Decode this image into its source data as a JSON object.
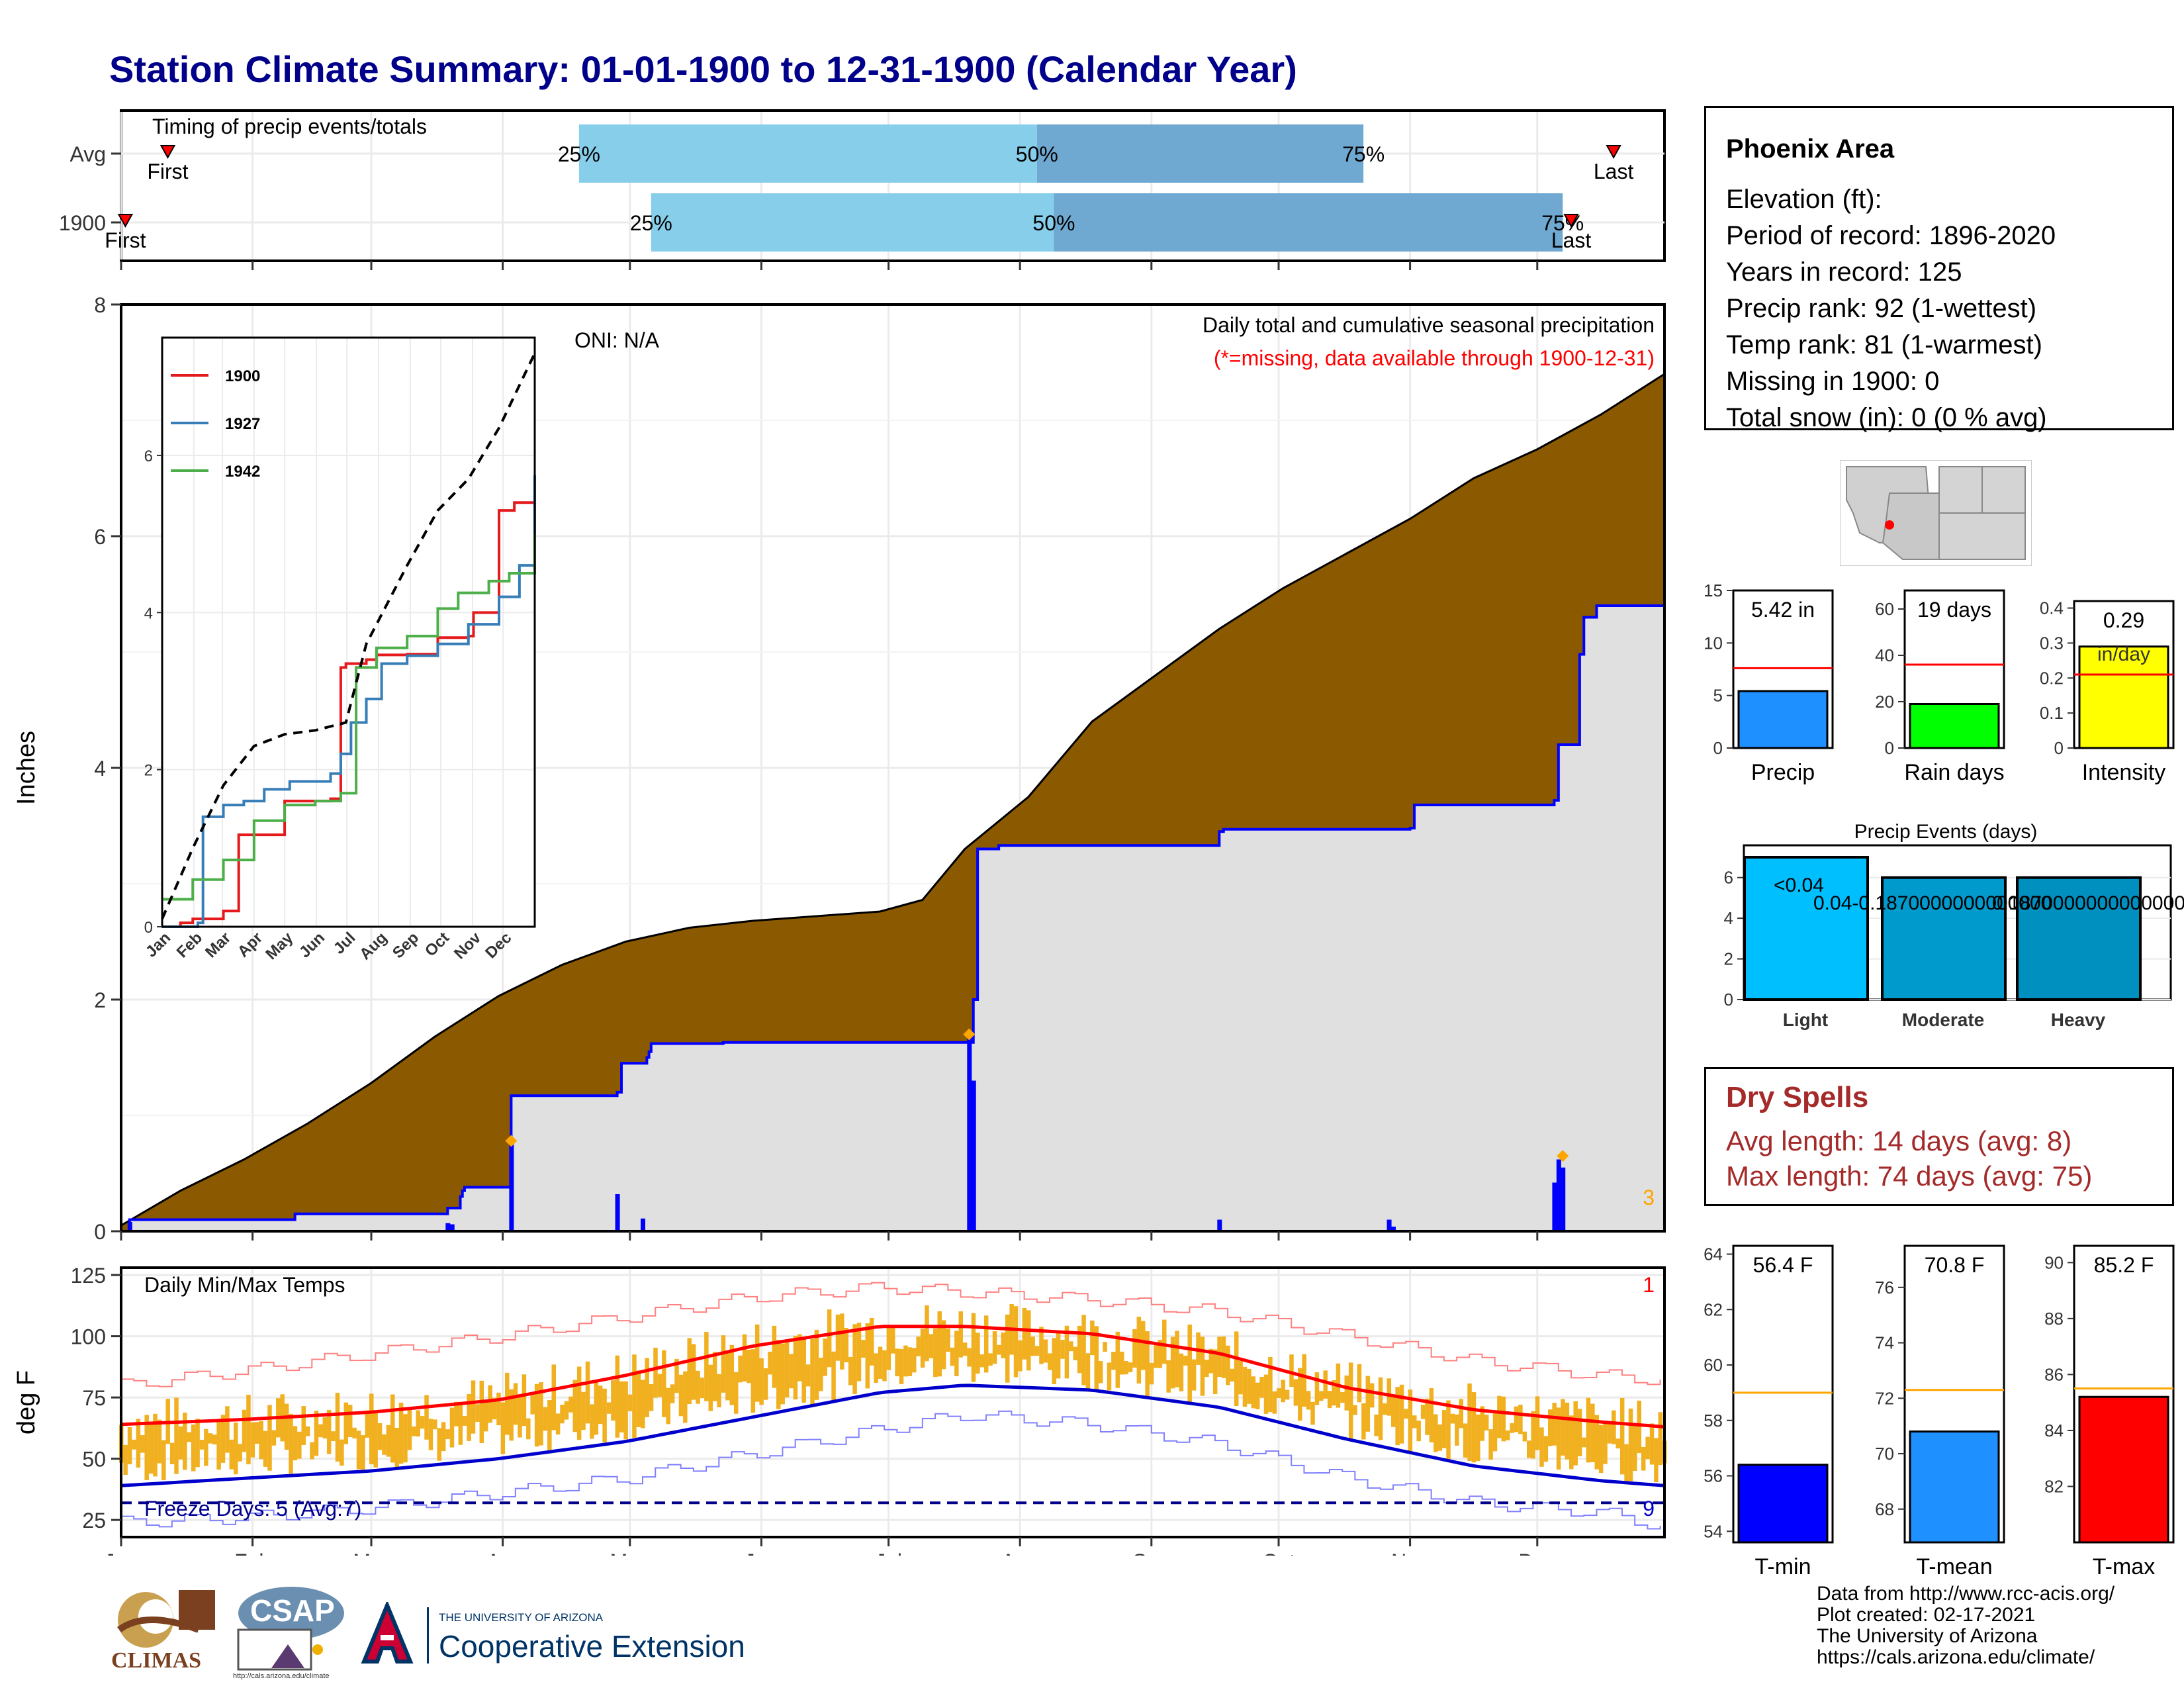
{
  "title": "Station Climate Summary: 01-01-1900 to 12-31-1900 (Calendar Year)",
  "months": [
    "Jan",
    "Feb",
    "Mar",
    "Apr",
    "May",
    "Jun",
    "Jul",
    "Aug",
    "Sep",
    "Oct",
    "Nov",
    "Dec"
  ],
  "timing": {
    "label": "Timing of precip events/totals",
    "rows": [
      {
        "name": "Avg",
        "first_doy": 12,
        "q25": 109,
        "q50": 217,
        "q75": 294,
        "last_doy": 353,
        "first_label": "First",
        "last_label": "Last",
        "p25": "25%",
        "p50": "50%",
        "p75": "75%"
      },
      {
        "name": "1900",
        "first_doy": 2,
        "q25": 126,
        "q50": 221,
        "q75": 341,
        "last_doy": 343,
        "first_label": "First",
        "last_label": "Last",
        "p25": "25%",
        "p50": "50%",
        "p75": "75%"
      }
    ]
  },
  "chart_data": [
    {
      "type": "area",
      "name": "precip",
      "title": "Daily total and cumulative seasonal precipitation",
      "subtitle": "(*=missing, data available through 1900-12-31)",
      "ylabel": "Inches",
      "ylim": [
        0,
        8
      ],
      "yticks": [
        0,
        2,
        4,
        6,
        8
      ],
      "oni": "ONI: N/A",
      "corner_count": "3",
      "avg_cumulative": {
        "doy": [
          1,
          15,
          30,
          45,
          60,
          75,
          90,
          105,
          120,
          135,
          150,
          165,
          180,
          190,
          200,
          215,
          230,
          245,
          260,
          275,
          290,
          305,
          320,
          335,
          350,
          365
        ],
        "inches": [
          0.05,
          0.35,
          0.62,
          0.93,
          1.28,
          1.68,
          2.03,
          2.3,
          2.5,
          2.62,
          2.68,
          2.72,
          2.76,
          2.86,
          3.3,
          3.75,
          4.4,
          4.8,
          5.2,
          5.55,
          5.85,
          6.15,
          6.5,
          6.75,
          7.05,
          7.4
        ]
      },
      "year_cumulative": {
        "doy": [
          1,
          3,
          42,
          78,
          81,
          81.5,
          82,
          92,
          93,
          118,
          119,
          125,
          125.5,
          126,
          142,
          143,
          201,
          202,
          203,
          208,
          210,
          260,
          261,
          305,
          306,
          339,
          340,
          345,
          346,
          349,
          365
        ],
        "inches": [
          0.0,
          0.1,
          0.15,
          0.2,
          0.3,
          0.35,
          0.38,
          0.38,
          1.17,
          1.2,
          1.45,
          1.5,
          1.55,
          1.62,
          1.62,
          1.63,
          1.63,
          2.0,
          3.3,
          3.33,
          3.33,
          3.45,
          3.47,
          3.48,
          3.68,
          3.72,
          4.2,
          4.98,
          5.3,
          5.4,
          5.4
        ]
      },
      "daily_bars": {
        "doy": [
          3,
          78,
          79,
          93,
          118,
          124,
          201,
          202,
          260,
          300,
          301,
          339,
          340,
          341
        ],
        "inches": [
          0.08,
          0.07,
          0.06,
          0.8,
          0.32,
          0.11,
          1.7,
          1.3,
          0.1,
          0.1,
          0.04,
          0.42,
          0.62,
          0.55
        ]
      },
      "markers": {
        "doy": [
          93,
          201,
          341
        ],
        "inches": [
          0.78,
          1.7,
          0.65
        ]
      }
    },
    {
      "type": "line",
      "name": "inset-cumulative",
      "series": [
        {
          "name": "1900",
          "color": "#e41a1c",
          "x": [
            0,
            18,
            30,
            60,
            75,
            120,
            165,
            175,
            180,
            200,
            210,
            240,
            270,
            300,
            305,
            330,
            345,
            365
          ],
          "y": [
            0,
            0.05,
            0.1,
            0.2,
            1.17,
            1.6,
            1.63,
            3.3,
            3.35,
            3.4,
            3.46,
            3.47,
            3.68,
            3.7,
            4.0,
            5.3,
            5.4,
            5.4
          ]
        },
        {
          "name": "1927",
          "color": "#377eb8",
          "x": [
            0,
            35,
            40,
            60,
            80,
            100,
            125,
            165,
            175,
            185,
            200,
            215,
            240,
            270,
            300,
            330,
            350,
            365
          ],
          "y": [
            0,
            0.05,
            1.4,
            1.55,
            1.6,
            1.75,
            1.85,
            1.95,
            2.2,
            2.6,
            2.9,
            3.35,
            3.45,
            3.6,
            3.85,
            4.2,
            4.6,
            5.75
          ]
        },
        {
          "name": "1942",
          "color": "#4daf4a",
          "x": [
            0,
            30,
            60,
            90,
            120,
            150,
            175,
            190,
            210,
            240,
            270,
            290,
            300,
            320,
            340,
            365
          ],
          "y": [
            0.35,
            0.6,
            0.85,
            1.35,
            1.55,
            1.6,
            1.7,
            3.3,
            3.55,
            3.7,
            4.05,
            4.25,
            4.25,
            4.4,
            4.5,
            5.0
          ]
        },
        {
          "name": "avg",
          "color": "#000000",
          "dash": true,
          "x": [
            0,
            30,
            60,
            90,
            120,
            150,
            180,
            200,
            220,
            240,
            270,
            300,
            330,
            365
          ],
          "y": [
            0.1,
            1.0,
            1.8,
            2.3,
            2.45,
            2.5,
            2.6,
            3.6,
            4.1,
            4.6,
            5.3,
            5.7,
            6.35,
            7.3
          ]
        }
      ],
      "ylim": [
        0,
        7.5
      ],
      "yticks": [
        0,
        2,
        4,
        6
      ]
    },
    {
      "type": "line",
      "name": "daily-temps",
      "title": "Daily Min/Max Temps",
      "ylabel": "deg F",
      "ylim": [
        18,
        128
      ],
      "yticks": [
        25,
        50,
        75,
        100,
        125
      ],
      "freeze_line": 32,
      "freeze_label": "Freeze Days: 5 (Avg:7)",
      "freeze_count": "9",
      "record_count": "1",
      "normal_max": {
        "doy": [
          1,
          30,
          60,
          90,
          120,
          150,
          180,
          200,
          230,
          260,
          290,
          320,
          350,
          365
        ],
        "degf": [
          64,
          66,
          69,
          74,
          84,
          96,
          104,
          104,
          101,
          93,
          79,
          70,
          65,
          63
        ]
      },
      "normal_min": {
        "doy": [
          1,
          30,
          60,
          90,
          120,
          150,
          180,
          200,
          230,
          260,
          290,
          320,
          350,
          365
        ],
        "degf": [
          39,
          42,
          45,
          50,
          57,
          67,
          77,
          80,
          78,
          71,
          58,
          47,
          41,
          39
        ]
      },
      "record_max": {
        "doy": [
          1,
          30,
          60,
          90,
          120,
          150,
          180,
          200,
          230,
          260,
          290,
          320,
          350,
          365
        ],
        "degf": [
          80,
          86,
          93,
          100,
          108,
          116,
          120,
          118,
          115,
          110,
          100,
          90,
          84,
          82
        ]
      },
      "record_min": {
        "doy": [
          1,
          30,
          60,
          90,
          120,
          150,
          180,
          200,
          230,
          260,
          290,
          320,
          350,
          365
        ],
        "degf": [
          24,
          26,
          30,
          36,
          42,
          52,
          62,
          68,
          64,
          56,
          42,
          32,
          28,
          22
        ]
      }
    },
    {
      "type": "bar",
      "name": "precip-summary",
      "categories": [
        "Precip"
      ],
      "values": [
        5.42
      ],
      "avg": 7.6,
      "ylim": [
        0,
        15
      ],
      "yticks": [
        0,
        5,
        10,
        15
      ],
      "label": "5.42 in",
      "color": "#1e90ff"
    },
    {
      "type": "bar",
      "name": "raindays-summary",
      "categories": [
        "Rain days"
      ],
      "values": [
        19
      ],
      "avg": 36,
      "ylim": [
        0,
        68
      ],
      "yticks": [
        0,
        20,
        40,
        60
      ],
      "label": "19 days",
      "color": "#00ff00"
    },
    {
      "type": "bar",
      "name": "intensity-summary",
      "categories": [
        "Intensity"
      ],
      "values": [
        0.29
      ],
      "avg": 0.21,
      "ylim": [
        0,
        0.42
      ],
      "yticks": [
        0.0,
        0.1,
        0.2,
        0.3,
        0.4
      ],
      "label": "0.29",
      "label2": "in/day",
      "color": "#ffff00"
    },
    {
      "type": "bar",
      "name": "precip-events",
      "title": "Precip Events (days)",
      "categories": [
        "Light",
        "Moderate",
        "Heavy"
      ],
      "values": [
        7,
        6,
        6
      ],
      "bar_labels": [
        "<0.04",
        "0.04-0.1870000000000000",
        "0.187000000000000000"
      ],
      "ylim": [
        0,
        7
      ],
      "yticks": [
        0,
        2,
        4,
        6
      ],
      "colors": [
        "#00bfff",
        "#009acd",
        "#0090c0"
      ]
    },
    {
      "type": "bar",
      "name": "tmin-summary",
      "categories": [
        "T-min"
      ],
      "values": [
        56.4
      ],
      "avg": 59,
      "ylim": [
        53.6,
        64.3
      ],
      "yticks": [
        54,
        56,
        58,
        60,
        62,
        64
      ],
      "label": "56.4 F",
      "color": "#0000ff"
    },
    {
      "type": "bar",
      "name": "tmean-summary",
      "categories": [
        "T-mean"
      ],
      "values": [
        70.8
      ],
      "avg": 72.3,
      "ylim": [
        66.8,
        77.5
      ],
      "yticks": [
        68,
        70,
        72,
        74,
        76
      ],
      "label": "70.8 F",
      "color": "#1e90ff"
    },
    {
      "type": "bar",
      "name": "tmax-summary",
      "categories": [
        "T-max"
      ],
      "values": [
        85.2
      ],
      "avg": 85.5,
      "ylim": [
        80,
        90.6
      ],
      "yticks": [
        82,
        84,
        86,
        88,
        90
      ],
      "label": "85.2 F",
      "color": "#ff0000"
    }
  ],
  "station": {
    "name": "Phoenix Area",
    "elevation": "Elevation (ft):",
    "period": "Period of record: 1896-2020",
    "years": "Years in record: 125",
    "precip_rank": "Precip rank: 92 (1-wettest)",
    "temp_rank": "Temp rank: 81 (1-warmest)",
    "missing": "Missing in 1900: 0",
    "snow": "Total snow (in): 0 (0 % avg)"
  },
  "dry_spells": {
    "title": "Dry Spells",
    "avg": "Avg length: 14 days (avg: 8)",
    "max": "Max length: 74 days (avg: 75)"
  },
  "credits": {
    "line1": "Data from http://www.rcc-acis.org/",
    "line2": "Plot created: 02-17-2021",
    "line3": "The University of Arizona",
    "line4": "https://cals.arizona.edu/climate/"
  },
  "logos": {
    "climas": "CLIMAS",
    "csap": "CSAP",
    "csap_url": "http://cals.arizona.edu/climate",
    "ua_small": "THE UNIVERSITY OF ARIZONA",
    "ua_big": "Cooperative Extension"
  },
  "colors": {
    "title": "#00008b",
    "avg_fill": "#8b5a00",
    "year_fill": "#e0e0e0",
    "year_line": "#0000ff",
    "temp_bar": "#f0b020",
    "normal_max": "#ff0000",
    "normal_min": "#0000cd",
    "dry_title": "#a52a2a"
  }
}
